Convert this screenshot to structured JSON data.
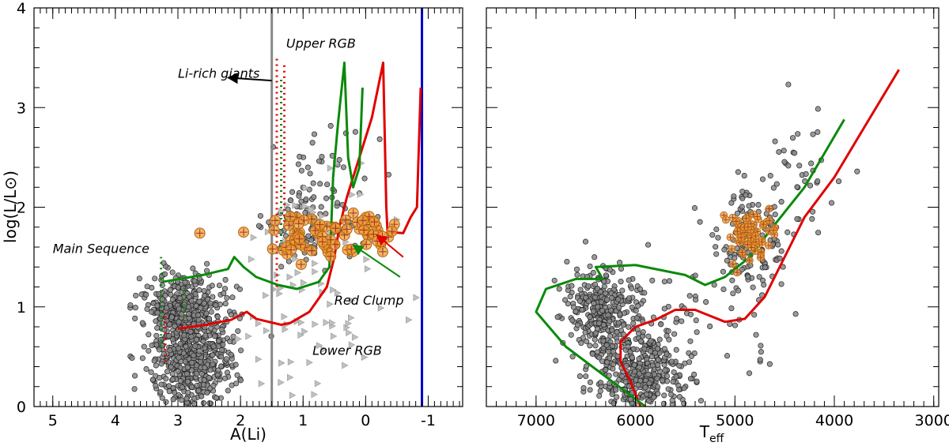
{
  "chart_data": [
    {
      "type": "scatter",
      "panel": "left",
      "xlabel": "A(Li)",
      "ylabel": "log(L/L⊙)",
      "xlim": [
        5.3,
        -1.55
      ],
      "ylim": [
        0,
        4
      ],
      "xticks": [
        5,
        4,
        3,
        2,
        1,
        0,
        -1
      ],
      "xtick_labels": [
        "5",
        "4",
        "3",
        "2",
        "1",
        "0",
        "-1"
      ],
      "yticks": [
        0,
        1,
        2,
        3,
        4
      ],
      "ytick_labels": [
        "0",
        "1",
        "2",
        "3",
        "4"
      ],
      "vertical_lines": [
        {
          "x": 1.5,
          "color": "#888888"
        },
        {
          "x": -0.9,
          "color": "#0000cc"
        }
      ],
      "annotations": [
        {
          "text": "Upper RGB",
          "x": 1.27,
          "y": 3.6
        },
        {
          "text": "Li-rich giants",
          "x": 3.0,
          "y": 3.3
        },
        {
          "text": "Main Sequence",
          "x": 5.0,
          "y": 1.54
        },
        {
          "text": "Red Clump",
          "x": 0.5,
          "y": 1.02
        },
        {
          "text": "Lower RGB",
          "x": 0.85,
          "y": 0.52
        }
      ],
      "arrows": [
        {
          "from": [
            1.5,
            3.27
          ],
          "to": [
            2.2,
            3.3
          ],
          "color": "#000000"
        },
        {
          "from": [
            -0.6,
            1.5
          ],
          "to": [
            -0.18,
            1.72
          ],
          "color": "#e00000"
        },
        {
          "from": [
            -0.55,
            1.3
          ],
          "to": [
            0.2,
            1.62
          ],
          "color": "#0a8a0a"
        }
      ],
      "series": [
        {
          "name": "red track",
          "color": "#e00000",
          "points": [
            [
              3.0,
              0.78
            ],
            [
              2.55,
              0.82
            ],
            [
              2.15,
              0.87
            ],
            [
              1.9,
              0.95
            ],
            [
              1.75,
              0.88
            ],
            [
              1.35,
              0.82
            ],
            [
              1.2,
              0.84
            ],
            [
              0.9,
              0.95
            ],
            [
              0.62,
              1.2
            ],
            [
              0.5,
              1.5
            ],
            [
              0.42,
              1.8
            ],
            [
              0.3,
              2.1
            ],
            [
              0.1,
              2.5
            ],
            [
              -0.1,
              2.9
            ],
            [
              -0.28,
              3.45
            ],
            [
              -0.33,
              2.0
            ],
            [
              -0.35,
              1.75
            ],
            [
              -0.6,
              1.74
            ],
            [
              -0.72,
              1.9
            ],
            [
              -0.82,
              2.0
            ],
            [
              -0.88,
              3.2
            ]
          ]
        },
        {
          "name": "green track",
          "color": "#0a8a0a",
          "points": [
            [
              3.25,
              1.25
            ],
            [
              2.6,
              1.32
            ],
            [
              2.2,
              1.38
            ],
            [
              2.1,
              1.5
            ],
            [
              1.95,
              1.4
            ],
            [
              1.75,
              1.3
            ],
            [
              1.4,
              1.22
            ],
            [
              1.1,
              1.18
            ],
            [
              0.75,
              1.25
            ],
            [
              0.58,
              1.4
            ],
            [
              0.55,
              1.8
            ],
            [
              0.52,
              2.3
            ],
            [
              0.44,
              2.85
            ],
            [
              0.34,
              3.45
            ],
            [
              0.28,
              2.5
            ],
            [
              0.2,
              2.2
            ],
            [
              0.1,
              2.4
            ],
            [
              0.05,
              3.2
            ]
          ]
        }
      ]
    },
    {
      "type": "scatter",
      "panel": "right",
      "xlabel": "T",
      "xlabel_sub": "eff",
      "xlim": [
        7500,
        2950
      ],
      "ylim": [
        0,
        4
      ],
      "xticks": [
        7000,
        6000,
        5000,
        4000,
        3000
      ],
      "xtick_labels": [
        "7000",
        "6000",
        "5000",
        "4000",
        "3000"
      ],
      "yticks": [
        0,
        1,
        2,
        3,
        4
      ],
      "series": [
        {
          "name": "red track",
          "color": "#e00000",
          "points": [
            [
              5950,
              0.0
            ],
            [
              6050,
              0.25
            ],
            [
              6150,
              0.45
            ],
            [
              6150,
              0.65
            ],
            [
              6000,
              0.8
            ],
            [
              5800,
              0.87
            ],
            [
              5600,
              0.97
            ],
            [
              5400,
              0.97
            ],
            [
              5100,
              0.85
            ],
            [
              4900,
              0.88
            ],
            [
              4700,
              1.1
            ],
            [
              4500,
              1.5
            ],
            [
              4300,
              1.9
            ],
            [
              4000,
              2.3
            ],
            [
              3700,
              2.8
            ],
            [
              3350,
              3.38
            ]
          ]
        },
        {
          "name": "green track",
          "color": "#0a8a0a",
          "points": [
            [
              5900,
              0.0
            ],
            [
              6300,
              0.3
            ],
            [
              6700,
              0.6
            ],
            [
              7000,
              0.95
            ],
            [
              6900,
              1.18
            ],
            [
              6600,
              1.28
            ],
            [
              6330,
              1.28
            ],
            [
              6400,
              1.4
            ],
            [
              6000,
              1.42
            ],
            [
              5500,
              1.32
            ],
            [
              5300,
              1.22
            ],
            [
              5100,
              1.3
            ],
            [
              4850,
              1.5
            ],
            [
              4620,
              1.8
            ],
            [
              4300,
              2.2
            ],
            [
              3900,
              2.88
            ]
          ]
        }
      ]
    }
  ]
}
